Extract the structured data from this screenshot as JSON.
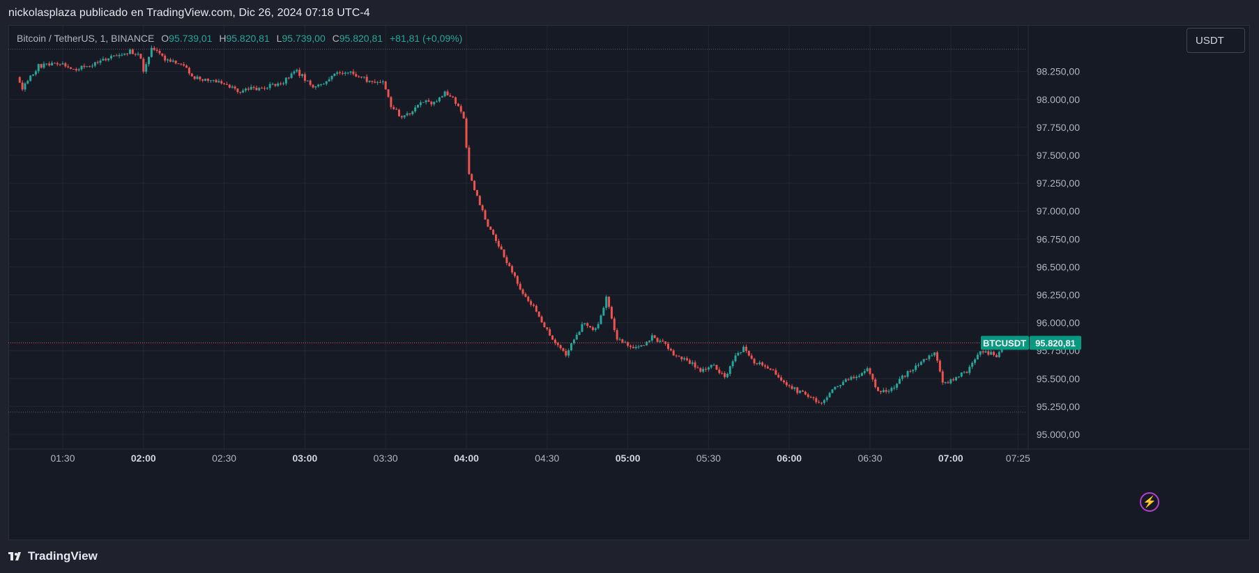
{
  "header": {
    "text": "nickolasplaza publicado en TradingView.com, Dic 26, 2024 07:18 UTC-4"
  },
  "legend": {
    "symbol": "Bitcoin / TetherUS, 1, BINANCE",
    "o_label": "O",
    "o_value": "95.739,01",
    "h_label": "H",
    "h_value": "95.820,81",
    "l_label": "L",
    "l_value": "95.739,00",
    "c_label": "C",
    "c_value": "95.820,81",
    "change": "+81,81 (+0,09%)"
  },
  "currency_button": "USDT",
  "price_tag": {
    "symbol": "BTCUSDT",
    "price": "95.820,81"
  },
  "footer": {
    "brand": "TradingView"
  },
  "colors": {
    "up": "#26a69a",
    "down": "#ef5350",
    "background": "#161a25",
    "grid": "#232733",
    "price_line": "#ef5350",
    "tag": "#089981"
  },
  "chart_data": {
    "type": "candlestick",
    "symbol": "BTCUSDT",
    "interval": "1",
    "exchange": "BINANCE",
    "ylim": [
      94850,
      98500
    ],
    "y_ticks": [
      {
        "value": 95000,
        "label": "95.000,00"
      },
      {
        "value": 95250,
        "label": "95.250,00"
      },
      {
        "value": 95500,
        "label": "95.500,00"
      },
      {
        "value": 95750,
        "label": "95.750,00"
      },
      {
        "value": 96000,
        "label": "96.000,00"
      },
      {
        "value": 96250,
        "label": "96.250,00"
      },
      {
        "value": 96500,
        "label": "96.500,00"
      },
      {
        "value": 96750,
        "label": "96.750,00"
      },
      {
        "value": 97000,
        "label": "97.000,00"
      },
      {
        "value": 97250,
        "label": "97.250,00"
      },
      {
        "value": 97500,
        "label": "97.500,00"
      },
      {
        "value": 97750,
        "label": "97.750,00"
      },
      {
        "value": 98000,
        "label": "98.000,00"
      },
      {
        "value": 98250,
        "label": "98.250,00"
      }
    ],
    "x_ticks": [
      {
        "time": "01:30",
        "bold": false
      },
      {
        "time": "02:00",
        "bold": true
      },
      {
        "time": "02:30",
        "bold": false
      },
      {
        "time": "03:00",
        "bold": true
      },
      {
        "time": "03:30",
        "bold": false
      },
      {
        "time": "04:00",
        "bold": true
      },
      {
        "time": "04:30",
        "bold": false
      },
      {
        "time": "05:00",
        "bold": true
      },
      {
        "time": "05:30",
        "bold": false
      },
      {
        "time": "06:00",
        "bold": true
      },
      {
        "time": "06:30",
        "bold": false
      },
      {
        "time": "07:00",
        "bold": true
      },
      {
        "time": "07:25",
        "bold": false
      }
    ],
    "x_start": "01:14",
    "x_end": "07:28",
    "last_price": 95820.81,
    "reference_lines": [
      98450,
      95200
    ],
    "anchors": [
      [
        "01:14",
        98200
      ],
      [
        "01:16",
        98100
      ],
      [
        "01:22",
        98300
      ],
      [
        "01:30",
        98330
      ],
      [
        "01:36",
        98270
      ],
      [
        "01:44",
        98320
      ],
      [
        "01:50",
        98400
      ],
      [
        "01:56",
        98430
      ],
      [
        "02:00",
        98380
      ],
      [
        "02:01",
        98250
      ],
      [
        "02:04",
        98460
      ],
      [
        "02:09",
        98360
      ],
      [
        "02:15",
        98330
      ],
      [
        "02:20",
        98190
      ],
      [
        "02:30",
        98160
      ],
      [
        "02:36",
        98070
      ],
      [
        "02:45",
        98110
      ],
      [
        "02:52",
        98140
      ],
      [
        "02:58",
        98250
      ],
      [
        "03:05",
        98100
      ],
      [
        "03:12",
        98220
      ],
      [
        "03:18",
        98250
      ],
      [
        "03:24",
        98170
      ],
      [
        "03:30",
        98150
      ],
      [
        "03:33",
        97950
      ],
      [
        "03:37",
        97830
      ],
      [
        "03:41",
        97900
      ],
      [
        "03:45",
        97980
      ],
      [
        "03:50",
        97970
      ],
      [
        "03:53",
        98060
      ],
      [
        "03:56",
        98010
      ],
      [
        "04:00",
        97830
      ],
      [
        "04:02",
        97330
      ],
      [
        "04:06",
        97050
      ],
      [
        "04:10",
        96820
      ],
      [
        "04:16",
        96550
      ],
      [
        "04:21",
        96300
      ],
      [
        "04:27",
        96100
      ],
      [
        "04:33",
        95850
      ],
      [
        "04:38",
        95700
      ],
      [
        "04:40",
        95820
      ],
      [
        "04:45",
        96010
      ],
      [
        "04:48",
        95920
      ],
      [
        "04:51",
        96050
      ],
      [
        "04:53",
        96250
      ],
      [
        "04:57",
        95850
      ],
      [
        "05:03",
        95790
      ],
      [
        "05:07",
        95780
      ],
      [
        "05:10",
        95870
      ],
      [
        "05:14",
        95820
      ],
      [
        "05:18",
        95720
      ],
      [
        "05:23",
        95660
      ],
      [
        "05:28",
        95580
      ],
      [
        "05:33",
        95620
      ],
      [
        "05:37",
        95500
      ],
      [
        "05:40",
        95660
      ],
      [
        "05:44",
        95780
      ],
      [
        "05:48",
        95640
      ],
      [
        "05:54",
        95600
      ],
      [
        "06:00",
        95440
      ],
      [
        "06:08",
        95340
      ],
      [
        "06:13",
        95280
      ],
      [
        "06:17",
        95410
      ],
      [
        "06:25",
        95520
      ],
      [
        "06:30",
        95580
      ],
      [
        "06:34",
        95380
      ],
      [
        "06:38",
        95390
      ],
      [
        "06:45",
        95560
      ],
      [
        "06:50",
        95650
      ],
      [
        "06:55",
        95730
      ],
      [
        "06:58",
        95470
      ],
      [
        "07:01",
        95480
      ],
      [
        "07:07",
        95570
      ],
      [
        "07:12",
        95760
      ],
      [
        "07:16",
        95720
      ],
      [
        "07:18",
        95690
      ],
      [
        "07:20",
        95820
      ]
    ]
  }
}
